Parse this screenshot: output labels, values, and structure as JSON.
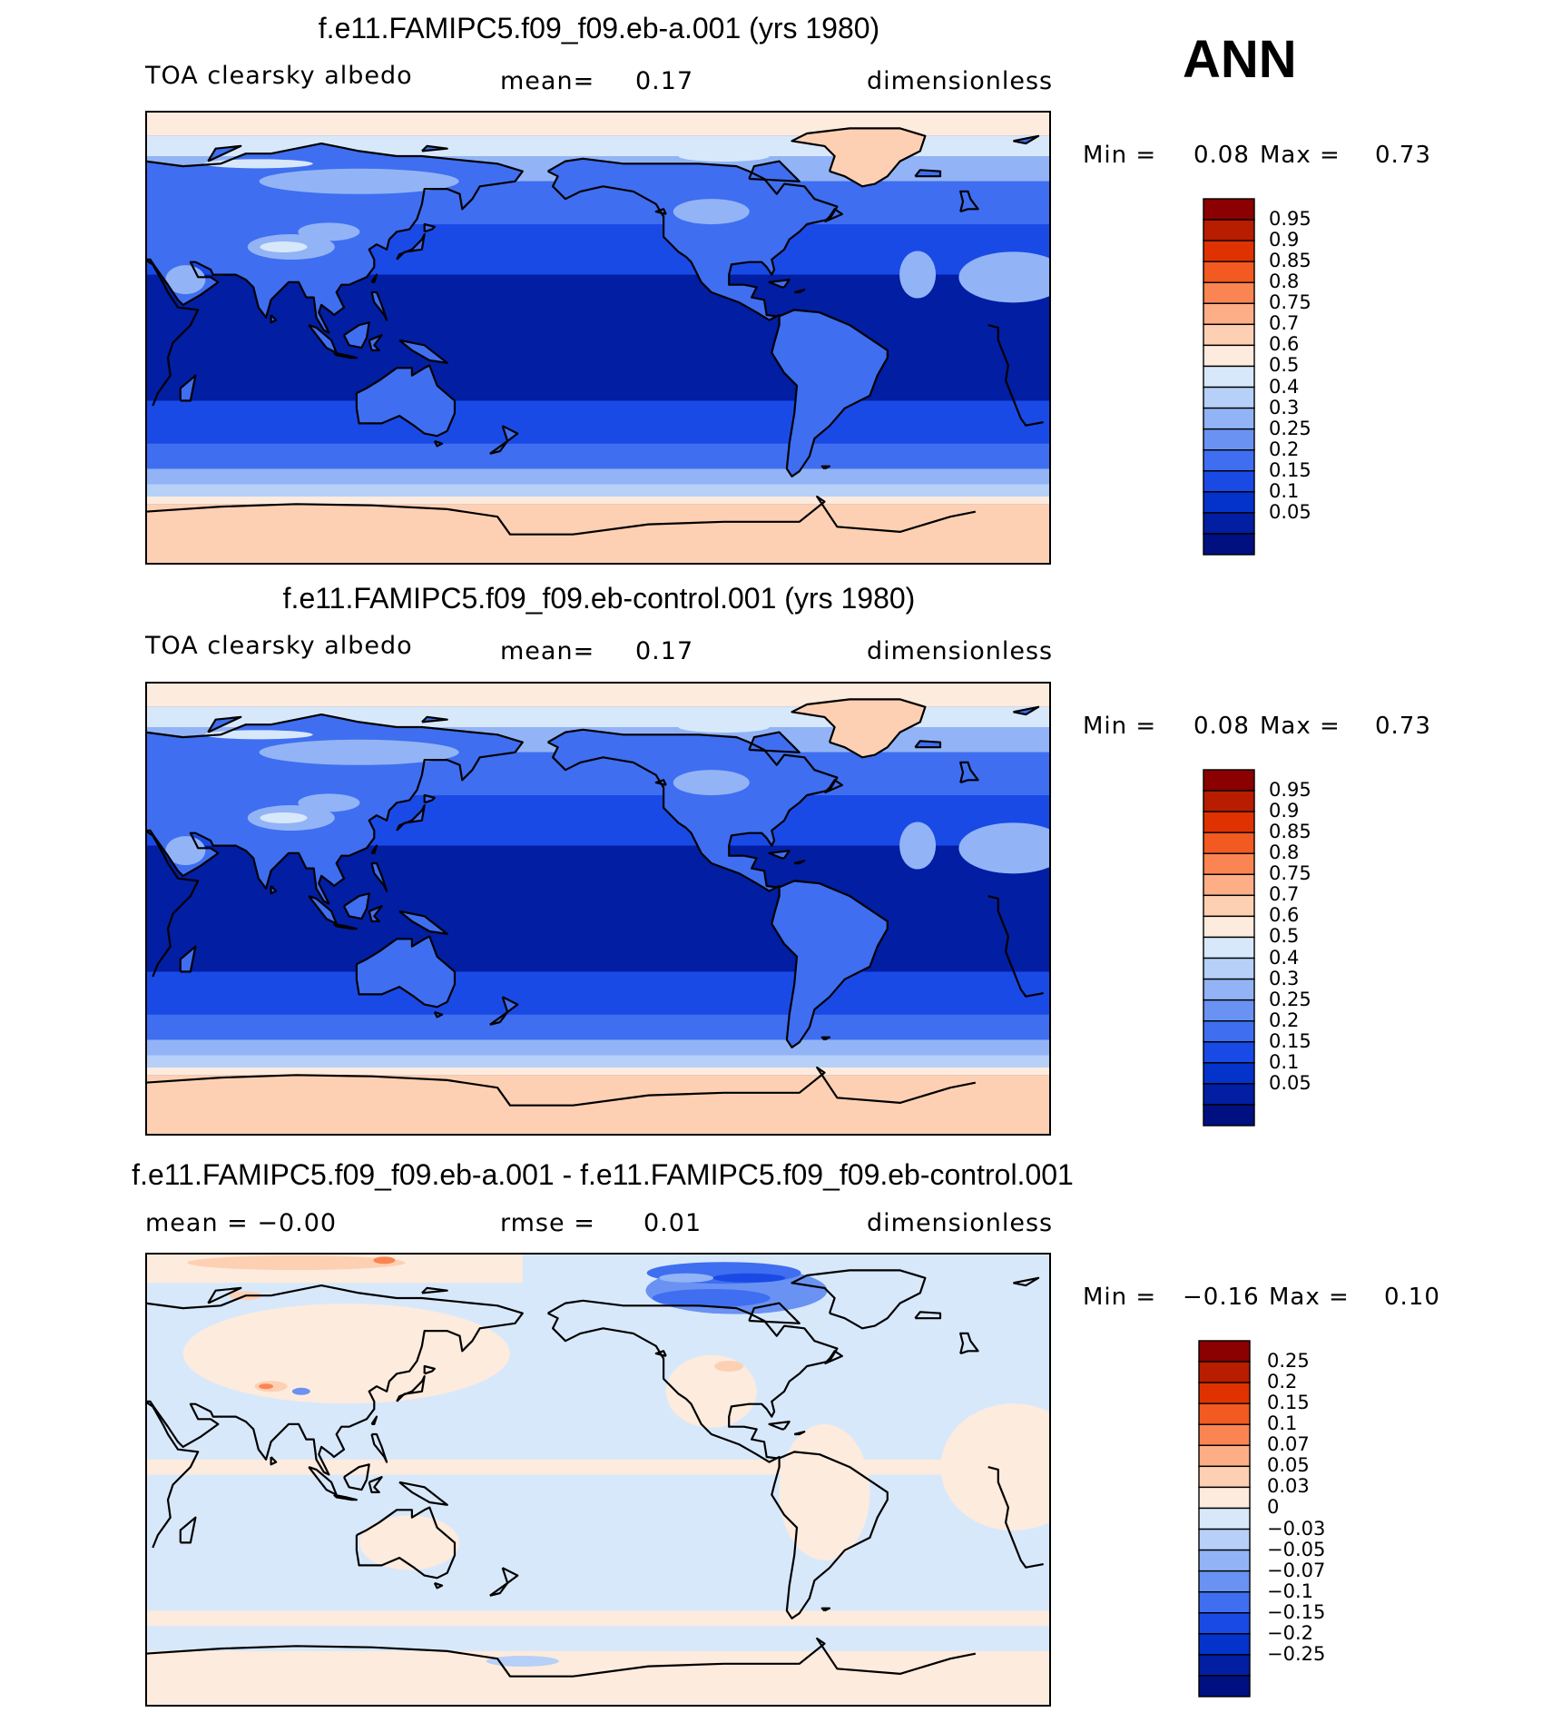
{
  "season_label": "ANN",
  "chart_data": [
    {
      "type": "heatmap",
      "title": "f.e11.FAMIPC5.f09_f09.eb-a.001 (yrs 1980)",
      "left_label": "TOA clearsky albedo",
      "stat_label": "mean=",
      "stat_value": "0.17",
      "units": "dimensionless",
      "min_label": "Min =",
      "min_value": "0.08",
      "max_label": "Max =",
      "max_value": "0.73",
      "color_levels": [
        "0.95",
        "0.9",
        "0.85",
        "0.8",
        "0.75",
        "0.7",
        "0.6",
        "0.5",
        "0.4",
        "0.3",
        "0.25",
        "0.2",
        "0.15",
        "0.1",
        "0.05"
      ],
      "colors": [
        "#8b0000",
        "#b81d00",
        "#e03200",
        "#f25a22",
        "#fb8552",
        "#fdae86",
        "#fdd0b4",
        "#fdebdd",
        "#d8e8fb",
        "#b6d0f8",
        "#92b4f6",
        "#6a92f2",
        "#3f6ef0",
        "#1a4ae6",
        "#0433cc",
        "#021ea3",
        "#001080"
      ],
      "field": "model_a"
    },
    {
      "type": "heatmap",
      "title": "f.e11.FAMIPC5.f09_f09.eb-control.001 (yrs 1980)",
      "left_label": "TOA clearsky albedo",
      "stat_label": "mean=",
      "stat_value": "0.17",
      "units": "dimensionless",
      "min_label": "Min =",
      "min_value": "0.08",
      "max_label": "Max =",
      "max_value": "0.73",
      "color_levels": [
        "0.95",
        "0.9",
        "0.85",
        "0.8",
        "0.75",
        "0.7",
        "0.6",
        "0.5",
        "0.4",
        "0.3",
        "0.25",
        "0.2",
        "0.15",
        "0.1",
        "0.05"
      ],
      "colors": [
        "#8b0000",
        "#b81d00",
        "#e03200",
        "#f25a22",
        "#fb8552",
        "#fdae86",
        "#fdd0b4",
        "#fdebdd",
        "#d8e8fb",
        "#b6d0f8",
        "#92b4f6",
        "#6a92f2",
        "#3f6ef0",
        "#1a4ae6",
        "#0433cc",
        "#021ea3",
        "#001080"
      ],
      "field": "model_control"
    },
    {
      "type": "heatmap",
      "title": "f.e11.FAMIPC5.f09_f09.eb-a.001 - f.e11.FAMIPC5.f09_f09.eb-control.001",
      "left_label": "mean =  −0.00",
      "stat_label": "rmse =",
      "stat_value": "0.01",
      "units": "dimensionless",
      "min_label": "Min =",
      "min_value": "−0.16",
      "max_label": "Max =",
      "max_value": "0.10",
      "color_levels": [
        "0.25",
        "0.2",
        "0.15",
        "0.1",
        "0.07",
        "0.05",
        "0.03",
        "0",
        "−0.03",
        "−0.05",
        "−0.07",
        "−0.1",
        "−0.15",
        "−0.2",
        "−0.25"
      ],
      "colors": [
        "#8b0000",
        "#b81d00",
        "#e03200",
        "#f25a22",
        "#fb8552",
        "#fdae86",
        "#fdd0b4",
        "#fdebdd",
        "#d8e8fb",
        "#b6d0f8",
        "#92b4f6",
        "#6a92f2",
        "#3f6ef0",
        "#1a4ae6",
        "#0433cc",
        "#021ea3",
        "#001080"
      ],
      "field": "difference"
    }
  ]
}
